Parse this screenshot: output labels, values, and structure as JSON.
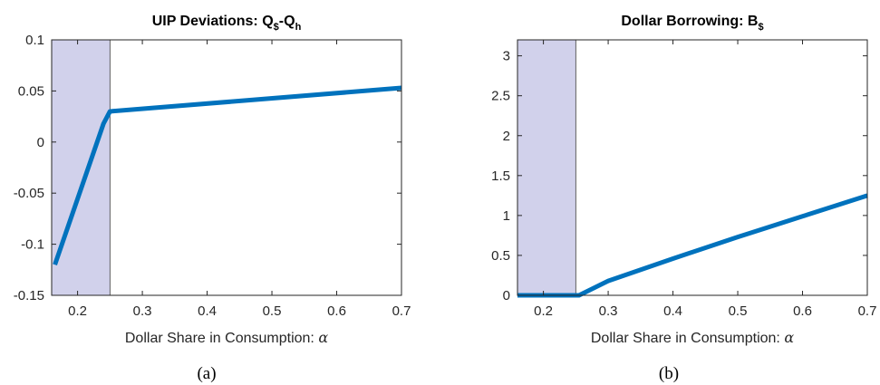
{
  "chart_data": [
    {
      "type": "line",
      "panel": "left",
      "title_main": "UIP Deviations: Q",
      "title_sub1": "$",
      "title_mid": "-Q",
      "title_sub2": "h",
      "xlabel": "Dollar Share in Consumption: ",
      "xlabel_symbol": "α",
      "caption": "(a)",
      "xlim": [
        0.16,
        0.7
      ],
      "ylim": [
        -0.15,
        0.1
      ],
      "x_ticks": [
        0.2,
        0.3,
        0.4,
        0.5,
        0.6,
        0.7
      ],
      "x_tick_labels": [
        "0.2",
        "0.3",
        "0.4",
        "0.5",
        "0.6",
        "0.7"
      ],
      "y_ticks": [
        -0.15,
        -0.1,
        -0.05,
        0,
        0.05,
        0.1
      ],
      "y_tick_labels": [
        "-0.15",
        "-0.1",
        "-0.05",
        "0",
        "0.05",
        "0.1"
      ],
      "shaded_region": {
        "x": [
          0.16,
          0.25
        ],
        "color": "#d1d1eb"
      },
      "series": [
        {
          "color": "#0072bd",
          "x": [
            0.165,
            0.24,
            0.25,
            0.7
          ],
          "y": [
            -0.12,
            0.018,
            0.03,
            0.053
          ]
        }
      ]
    },
    {
      "type": "line",
      "panel": "right",
      "title_main": "Dollar Borrowing: B",
      "title_sub1": "$",
      "xlabel": "Dollar Share in Consumption: ",
      "xlabel_symbol": "α",
      "caption": "(b)",
      "xlim": [
        0.16,
        0.7
      ],
      "ylim": [
        0,
        3.2
      ],
      "x_ticks": [
        0.2,
        0.3,
        0.4,
        0.5,
        0.6,
        0.7
      ],
      "x_tick_labels": [
        "0.2",
        "0.3",
        "0.4",
        "0.5",
        "0.6",
        "0.7"
      ],
      "y_ticks": [
        0,
        0.5,
        1,
        1.5,
        2,
        2.5,
        3
      ],
      "y_tick_labels": [
        "0",
        "0.5",
        "1",
        "1.5",
        "2",
        "2.5",
        "3"
      ],
      "shaded_region": {
        "x": [
          0.16,
          0.25
        ],
        "color": "#d1d1eb"
      },
      "series": [
        {
          "color": "#0072bd",
          "x": [
            0.16,
            0.245,
            0.255,
            0.3,
            0.4,
            0.5,
            0.6,
            0.7
          ],
          "y": [
            0,
            0,
            0,
            0.18,
            0.46,
            0.73,
            0.99,
            1.25
          ]
        }
      ]
    }
  ]
}
